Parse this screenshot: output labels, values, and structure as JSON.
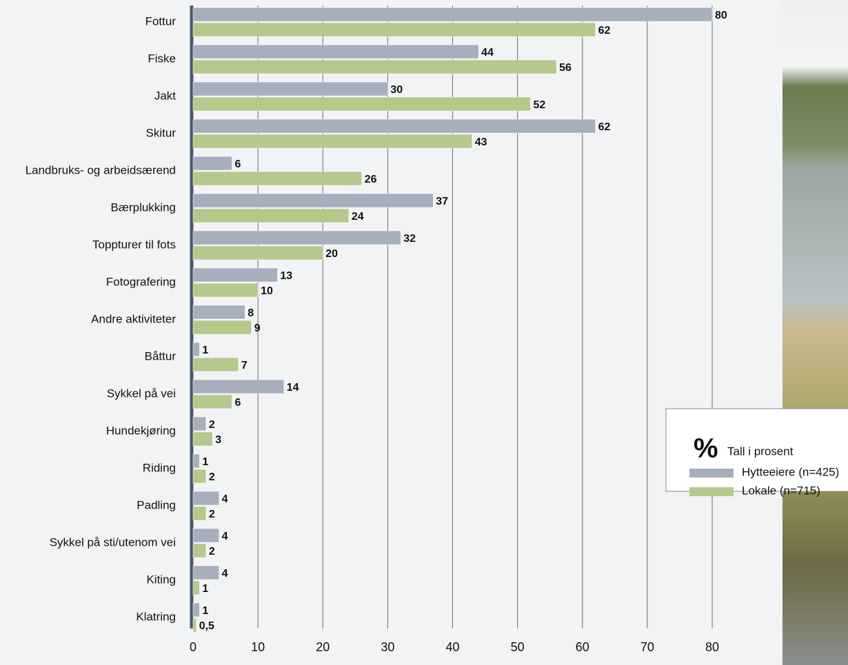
{
  "chart_data": {
    "type": "barh",
    "categories": [
      "Fottur",
      "Fiske",
      "Jakt",
      "Skitur",
      "Landbruks- og arbeidsærend",
      "Bærplukking",
      "Toppturer til fots",
      "Fotografering",
      "Andre aktiviteter",
      "Båttur",
      "Sykkel på vei",
      "Hundekjøring",
      "Riding",
      "Padling",
      "Sykkel på sti/utenom vei",
      "Kiting",
      "Klatring"
    ],
    "series": [
      {
        "name": "Hytteeiere (n=425)",
        "color": "#a7aebc",
        "values": [
          80,
          44,
          30,
          62,
          6,
          37,
          32,
          13,
          8,
          1,
          14,
          2,
          1,
          4,
          4,
          4,
          1
        ]
      },
      {
        "name": "Lokale (n=715)",
        "color": "#b6c98c",
        "values": [
          62,
          56,
          52,
          43,
          26,
          24,
          20,
          10,
          9,
          7,
          6,
          3,
          2,
          2,
          2,
          1,
          0.5
        ],
        "value_labels": [
          "62",
          "56",
          "52",
          "43",
          "26",
          "24",
          "20",
          "10",
          "9",
          "7",
          "6",
          "3",
          "2",
          "2",
          "2",
          "1",
          "0,5"
        ]
      }
    ],
    "xlim": [
      0,
      80
    ],
    "xticks": [
      0,
      10,
      20,
      30,
      40,
      50,
      60,
      70,
      80
    ],
    "grid": true,
    "legend": "lower right",
    "unit_symbol": "%",
    "unit_note": "Tall i prosent"
  }
}
